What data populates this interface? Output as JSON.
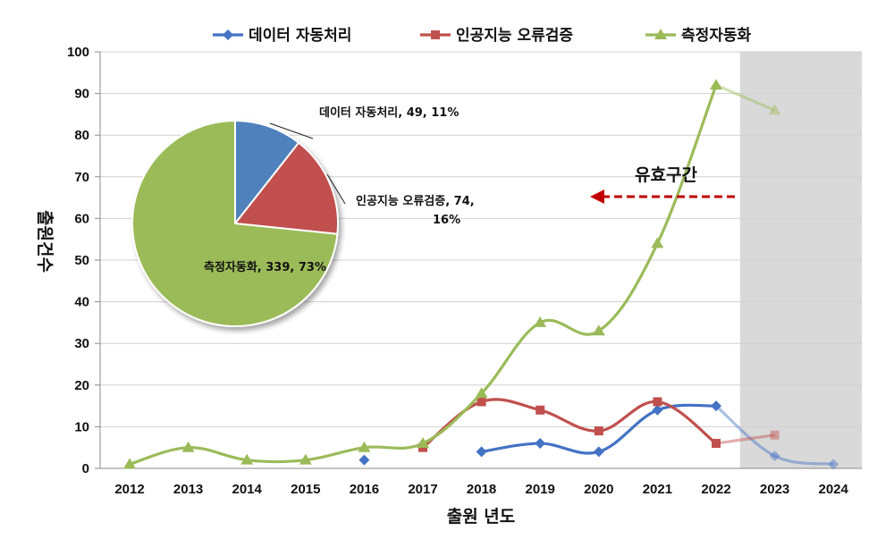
{
  "chart_data": [
    {
      "type": "line",
      "xlabel": "출원 년도",
      "ylabel": "출원건수",
      "ylim": [
        0,
        100
      ],
      "yticks": [
        0,
        10,
        20,
        30,
        40,
        50,
        60,
        70,
        80,
        90,
        100
      ],
      "categories": [
        "2012",
        "2013",
        "2014",
        "2015",
        "2016",
        "2017",
        "2018",
        "2019",
        "2020",
        "2021",
        "2022",
        "2023",
        "2024"
      ],
      "legend_position": "top",
      "grid": "horizontal",
      "shaded_region": {
        "from": "2023",
        "to": "2024"
      },
      "annotation": {
        "text": "유효구간",
        "arrow_direction": "left"
      },
      "series": [
        {
          "name": "데이터 자동처리",
          "color": "#4472C4",
          "marker": "diamond",
          "values": [
            null,
            null,
            null,
            null,
            2,
            null,
            4,
            6,
            4,
            14,
            15,
            3,
            1
          ]
        },
        {
          "name": "인공지능 오류검증",
          "color": "#C0504D",
          "marker": "square",
          "values": [
            null,
            null,
            null,
            null,
            null,
            5,
            16,
            14,
            9,
            16,
            6,
            8,
            null
          ]
        },
        {
          "name": "측정자동화",
          "color": "#9BBB59",
          "marker": "triangle",
          "values": [
            1,
            5,
            2,
            2,
            5,
            6,
            18,
            35,
            33,
            54,
            92,
            86,
            null
          ]
        }
      ]
    },
    {
      "type": "pie",
      "slices": [
        {
          "name": "데이터 자동처리",
          "value": 49,
          "percent": "11%",
          "color": "#4F81BD",
          "label_line1": "데이터 자동처리, 49, 11%",
          "label_line2": ""
        },
        {
          "name": "인공지능 오류검증",
          "value": 74,
          "percent": "16%",
          "color": "#C0504D",
          "label_line1": "인공지능 오류검증, 74,",
          "label_line2": "16%"
        },
        {
          "name": "측정자동화",
          "value": 339,
          "percent": "73%",
          "color": "#9BBB59",
          "label_line1": "측정자동화, 339, 73%",
          "label_line2": ""
        }
      ]
    }
  ]
}
